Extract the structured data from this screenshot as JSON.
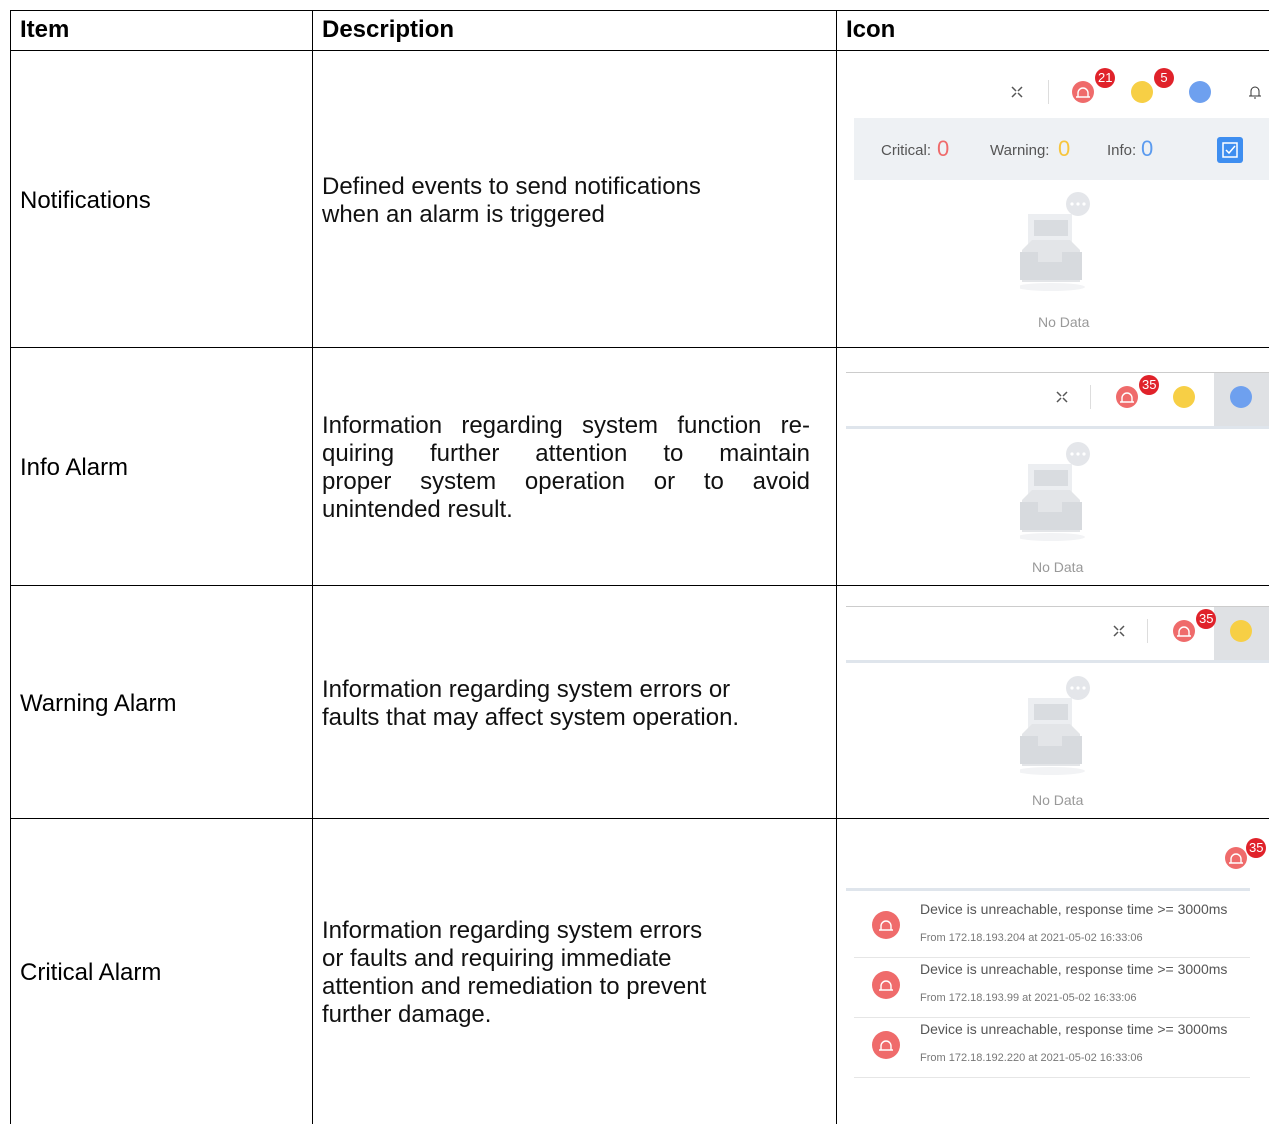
{
  "table": {
    "headers": [
      "Item",
      "Description",
      "Icon"
    ],
    "rows": [
      {
        "item": "Notifications",
        "description": [
          "Defined events to send notifications",
          "when an alarm is triggered"
        ],
        "icon": {
          "badges": [
            21,
            5
          ],
          "counts": [
            {
              "label": "Critical:",
              "value": 0
            },
            {
              "label": "Warning:",
              "value": 0
            },
            {
              "label": "Info:",
              "value": 0
            }
          ],
          "empty": "No Data"
        }
      },
      {
        "item": "Info Alarm",
        "description": [
          "Information regarding system function re-",
          "quiring further attention to maintain",
          "proper system operation or to avoid",
          "unintended result."
        ],
        "icon": {
          "badges": [
            35
          ],
          "empty": "No Data"
        }
      },
      {
        "item": "Warning Alarm",
        "description": [
          "Information regarding system errors or",
          "faults that may affect system operation."
        ],
        "icon": {
          "badges": [
            35
          ],
          "empty": "No Data"
        }
      },
      {
        "item": "Critical Alarm",
        "description": [
          "Information regarding system errors",
          "or faults and requiring immediate",
          "attention and remediation to prevent",
          "further damage."
        ],
        "icon": {
          "badges": [
            35
          ],
          "alarms": [
            {
              "message": "Device is unreachable, response time >= 3000ms",
              "source": "From 172.18.193.204 at 2021-05-02 16:33:06"
            },
            {
              "message": "Device is unreachable, response time >= 3000ms",
              "source": "From 172.18.193.99 at 2021-05-02 16:33:06"
            },
            {
              "message": "Device is unreachable, response time >= 3000ms",
              "source": "From 172.18.192.220 at 2021-05-02 16:33:06"
            }
          ]
        }
      }
    ]
  }
}
